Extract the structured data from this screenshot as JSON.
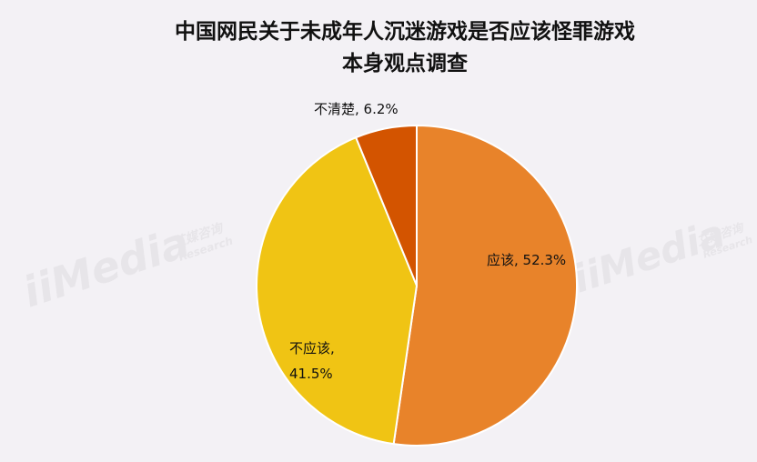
{
  "chart_data": {
    "type": "pie",
    "title_line1": "中国网民关于未成年人沉迷游戏是否应该怪罪游戏",
    "title_line2": "本身观点调查",
    "slices": [
      {
        "label": "应该",
        "value": 52.3,
        "display": "应该, 52.3%",
        "color": "#e8832a"
      },
      {
        "label": "不应该",
        "value": 41.5,
        "display_line1": "不应该,",
        "display_line2": "41.5%",
        "color": "#f0c414"
      },
      {
        "label": "不清楚",
        "value": 6.2,
        "display": "不清楚, 6.2%",
        "color": "#d35400"
      }
    ],
    "legend": "none",
    "grid": false
  },
  "watermark": {
    "brand": "iiMedia",
    "sub_cn": "艾媒咨询",
    "sub_en": "Research"
  }
}
